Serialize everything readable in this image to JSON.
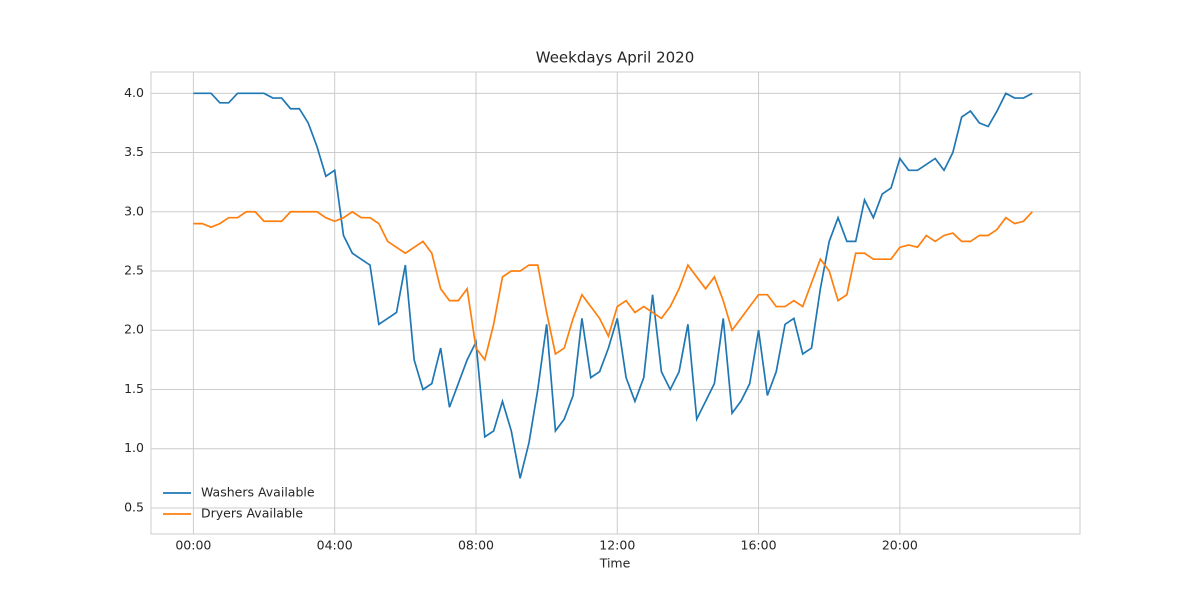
{
  "chart_data": {
    "type": "line",
    "title": "Weekdays April 2020",
    "xlabel": "Time",
    "x": [
      0,
      0.25,
      0.5,
      0.75,
      1,
      1.25,
      1.5,
      1.75,
      2,
      2.25,
      2.5,
      2.75,
      3,
      3.25,
      3.5,
      3.75,
      4,
      4.25,
      4.5,
      4.75,
      5,
      5.25,
      5.5,
      5.75,
      6,
      6.25,
      6.5,
      6.75,
      7,
      7.25,
      7.5,
      7.75,
      8,
      8.25,
      8.5,
      8.75,
      9,
      9.25,
      9.5,
      9.75,
      10,
      10.25,
      10.5,
      10.75,
      11,
      11.25,
      11.5,
      11.75,
      12,
      12.25,
      12.5,
      12.75,
      13,
      13.25,
      13.5,
      13.75,
      14,
      14.25,
      14.5,
      14.75,
      15,
      15.25,
      15.5,
      15.75,
      16,
      16.25,
      16.5,
      16.75,
      17,
      17.25,
      17.5,
      17.75,
      18,
      18.25,
      18.5,
      18.75,
      19,
      19.25,
      19.5,
      19.75,
      20,
      20.25,
      20.5,
      20.75,
      21,
      21.25,
      21.5,
      21.75,
      22,
      22.25,
      22.5,
      22.75,
      23,
      23.25,
      23.5,
      23.75
    ],
    "series": [
      {
        "name": "Washers Available",
        "color": "#1f77b4",
        "values": [
          4.0,
          4.0,
          4.0,
          3.92,
          3.92,
          4.0,
          4.0,
          4.0,
          4.0,
          3.96,
          3.96,
          3.87,
          3.87,
          3.75,
          3.55,
          3.3,
          3.35,
          2.8,
          2.65,
          2.6,
          2.55,
          2.05,
          2.1,
          2.15,
          2.55,
          1.75,
          1.5,
          1.55,
          1.85,
          1.35,
          1.55,
          1.75,
          1.9,
          1.1,
          1.15,
          1.4,
          1.15,
          0.75,
          1.05,
          1.5,
          2.05,
          1.15,
          1.25,
          1.45,
          2.1,
          1.6,
          1.65,
          1.85,
          2.1,
          1.6,
          1.4,
          1.6,
          2.3,
          1.65,
          1.5,
          1.65,
          2.05,
          1.25,
          1.4,
          1.55,
          2.1,
          1.3,
          1.4,
          1.55,
          2.0,
          1.45,
          1.65,
          2.05,
          2.1,
          1.8,
          1.85,
          2.35,
          2.75,
          2.95,
          2.75,
          2.75,
          3.1,
          2.95,
          3.15,
          3.2,
          3.45,
          3.35,
          3.35,
          3.4,
          3.45,
          3.35,
          3.5,
          3.8,
          3.85,
          3.75,
          3.72,
          3.85,
          4.0,
          3.96,
          3.96,
          4.0
        ]
      },
      {
        "name": "Dryers Available",
        "color": "#ff7f0e",
        "values": [
          2.9,
          2.9,
          2.87,
          2.9,
          2.95,
          2.95,
          3.0,
          3.0,
          2.92,
          2.92,
          2.92,
          3.0,
          3.0,
          3.0,
          3.0,
          2.95,
          2.92,
          2.95,
          3.0,
          2.95,
          2.95,
          2.9,
          2.75,
          2.7,
          2.65,
          2.7,
          2.75,
          2.65,
          2.35,
          2.25,
          2.25,
          2.35,
          1.85,
          1.75,
          2.05,
          2.45,
          2.5,
          2.5,
          2.55,
          2.55,
          2.15,
          1.8,
          1.85,
          2.1,
          2.3,
          2.2,
          2.1,
          1.95,
          2.2,
          2.25,
          2.15,
          2.2,
          2.15,
          2.1,
          2.2,
          2.35,
          2.55,
          2.45,
          2.35,
          2.45,
          2.25,
          2.0,
          2.1,
          2.2,
          2.3,
          2.3,
          2.2,
          2.2,
          2.25,
          2.2,
          2.4,
          2.6,
          2.5,
          2.25,
          2.3,
          2.65,
          2.65,
          2.6,
          2.6,
          2.6,
          2.7,
          2.72,
          2.7,
          2.8,
          2.75,
          2.8,
          2.82,
          2.75,
          2.75,
          2.8,
          2.8,
          2.85,
          2.95,
          2.9,
          2.92,
          3.0
        ]
      }
    ],
    "xlim": [
      -1.2,
      25.1
    ],
    "xticks": [
      {
        "value": 0,
        "label": "00:00"
      },
      {
        "value": 4,
        "label": "04:00"
      },
      {
        "value": 8,
        "label": "08:00"
      },
      {
        "value": 12,
        "label": "12:00"
      },
      {
        "value": 16,
        "label": "16:00"
      },
      {
        "value": 20,
        "label": "20:00"
      }
    ],
    "ylim": [
      0.28,
      4.18
    ],
    "yticks": [
      {
        "value": 0.5,
        "label": "0.5"
      },
      {
        "value": 1.0,
        "label": "1.0"
      },
      {
        "value": 1.5,
        "label": "1.5"
      },
      {
        "value": 2.0,
        "label": "2.0"
      },
      {
        "value": 2.5,
        "label": "2.5"
      },
      {
        "value": 3.0,
        "label": "3.0"
      },
      {
        "value": 3.5,
        "label": "3.5"
      },
      {
        "value": 4.0,
        "label": "4.0"
      }
    ],
    "grid": true,
    "legend": "lower left"
  }
}
